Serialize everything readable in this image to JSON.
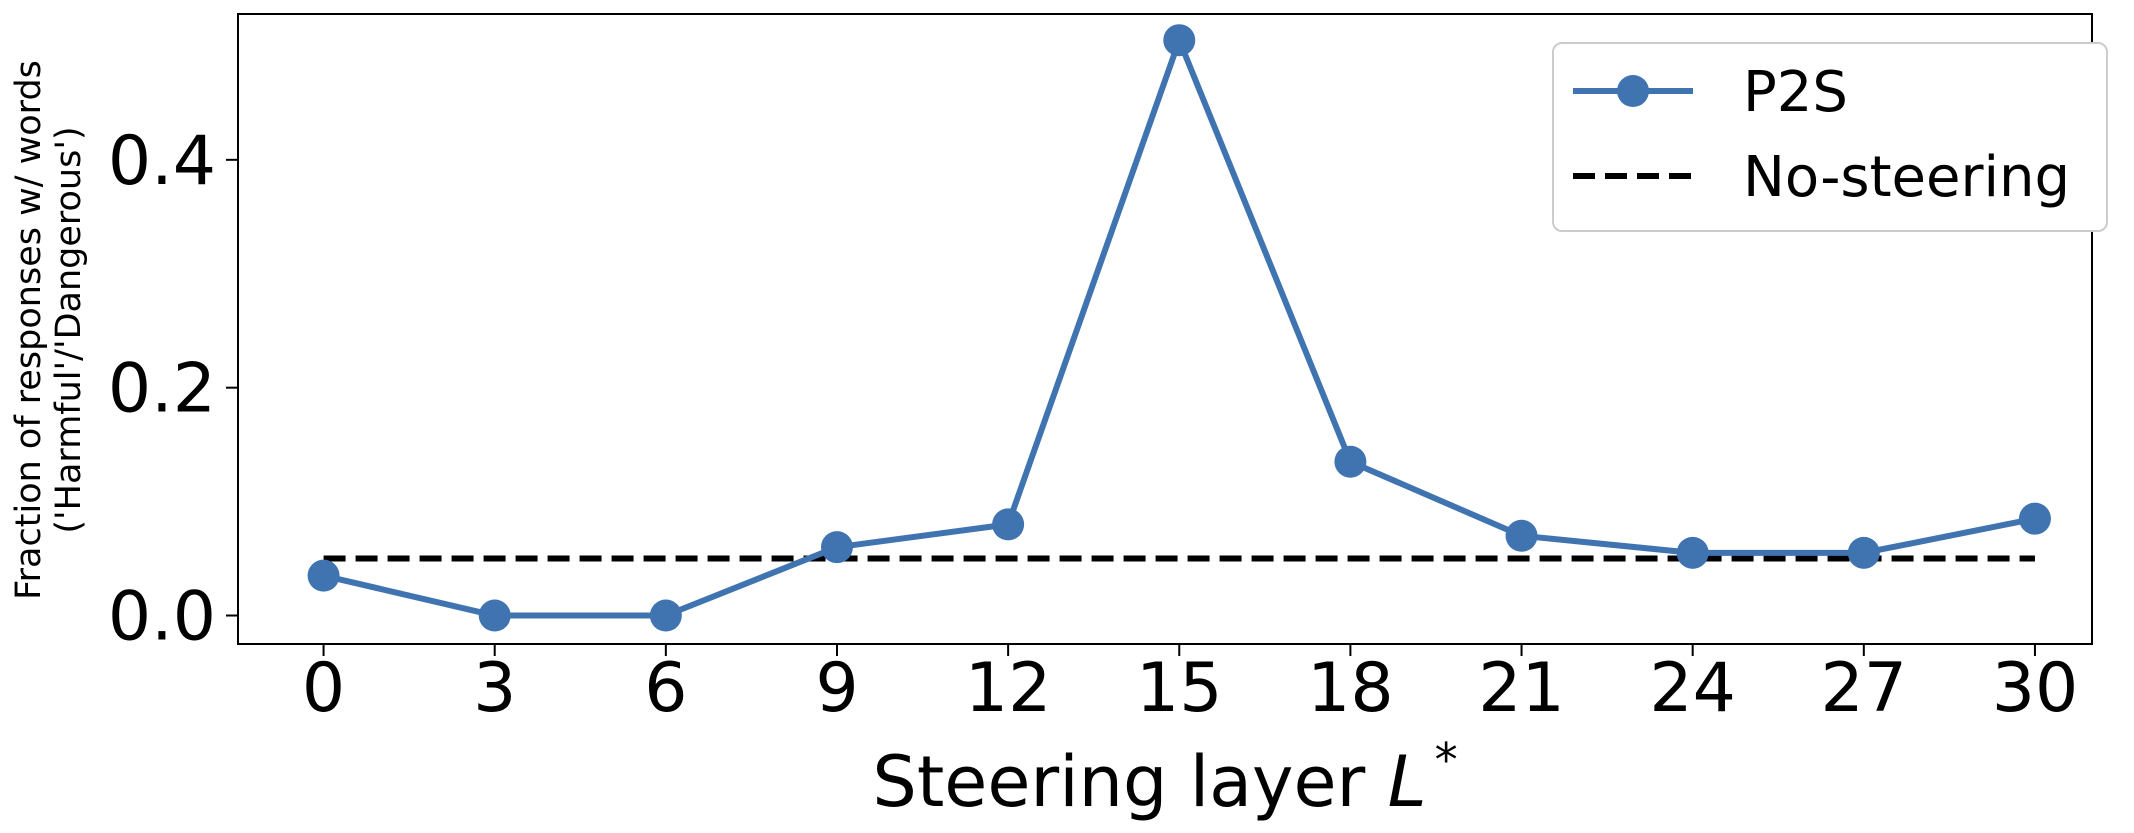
{
  "chart_data": {
    "type": "line",
    "xlabel": "Steering layer ",
    "xlabel_symbol": "L",
    "xlabel_sup": "*",
    "ylabel_line1": "Fraction of responses w/ words",
    "ylabel_line2": "('Harmful'/'Dangerous')",
    "xticks": [
      "0",
      "3",
      "6",
      "9",
      "12",
      "15",
      "18",
      "21",
      "24",
      "27",
      "30"
    ],
    "yticks": [
      "0.0",
      "0.2",
      "0.4"
    ],
    "xlim": [
      -1.5,
      31.0
    ],
    "ylim": [
      -0.025,
      0.528
    ],
    "grid": false,
    "legend_position": "upper right",
    "series": [
      {
        "name": "P2S",
        "style": "solid-markers",
        "color": "#3f74b1",
        "x": [
          0,
          3,
          6,
          9,
          12,
          15,
          18,
          21,
          24,
          27,
          30
        ],
        "y": [
          0.035,
          0.0,
          0.0,
          0.06,
          0.08,
          0.505,
          0.135,
          0.07,
          0.055,
          0.055,
          0.085
        ]
      },
      {
        "name": "No-steering",
        "style": "dashed",
        "color": "#000000",
        "x": [
          0,
          30
        ],
        "y": [
          0.05,
          0.05
        ]
      }
    ]
  }
}
